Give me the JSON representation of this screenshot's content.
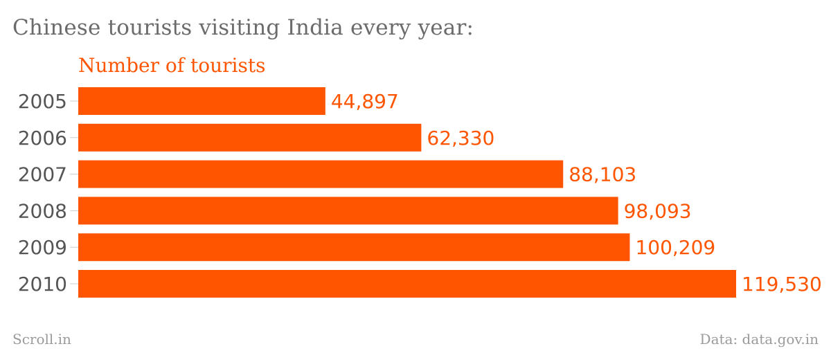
{
  "header": {
    "title": "Chinese tourists visiting India every year:"
  },
  "footer": {
    "source_left": "Scroll.in",
    "source_right": "Data: data.gov.in"
  },
  "colors": {
    "bar": "#ff5500",
    "value_text": "#ff5500",
    "tick_text": "#555555",
    "tick_line": "#cccccc"
  },
  "chart_data": {
    "type": "bar",
    "orientation": "horizontal",
    "title": "Chinese tourists visiting India every year:",
    "series_label": "Number of tourists",
    "categories": [
      "2005",
      "2006",
      "2007",
      "2008",
      "2009",
      "2010"
    ],
    "series": [
      {
        "name": "Number of tourists",
        "values": [
          44897,
          62330,
          88103,
          98093,
          100209,
          119530
        ],
        "labels": [
          "44,897",
          "62,330",
          "88,103",
          "98,093",
          "100,209",
          "119,530"
        ]
      }
    ],
    "xlim": [
      0,
      119530
    ],
    "grid": false,
    "legend": "none"
  }
}
